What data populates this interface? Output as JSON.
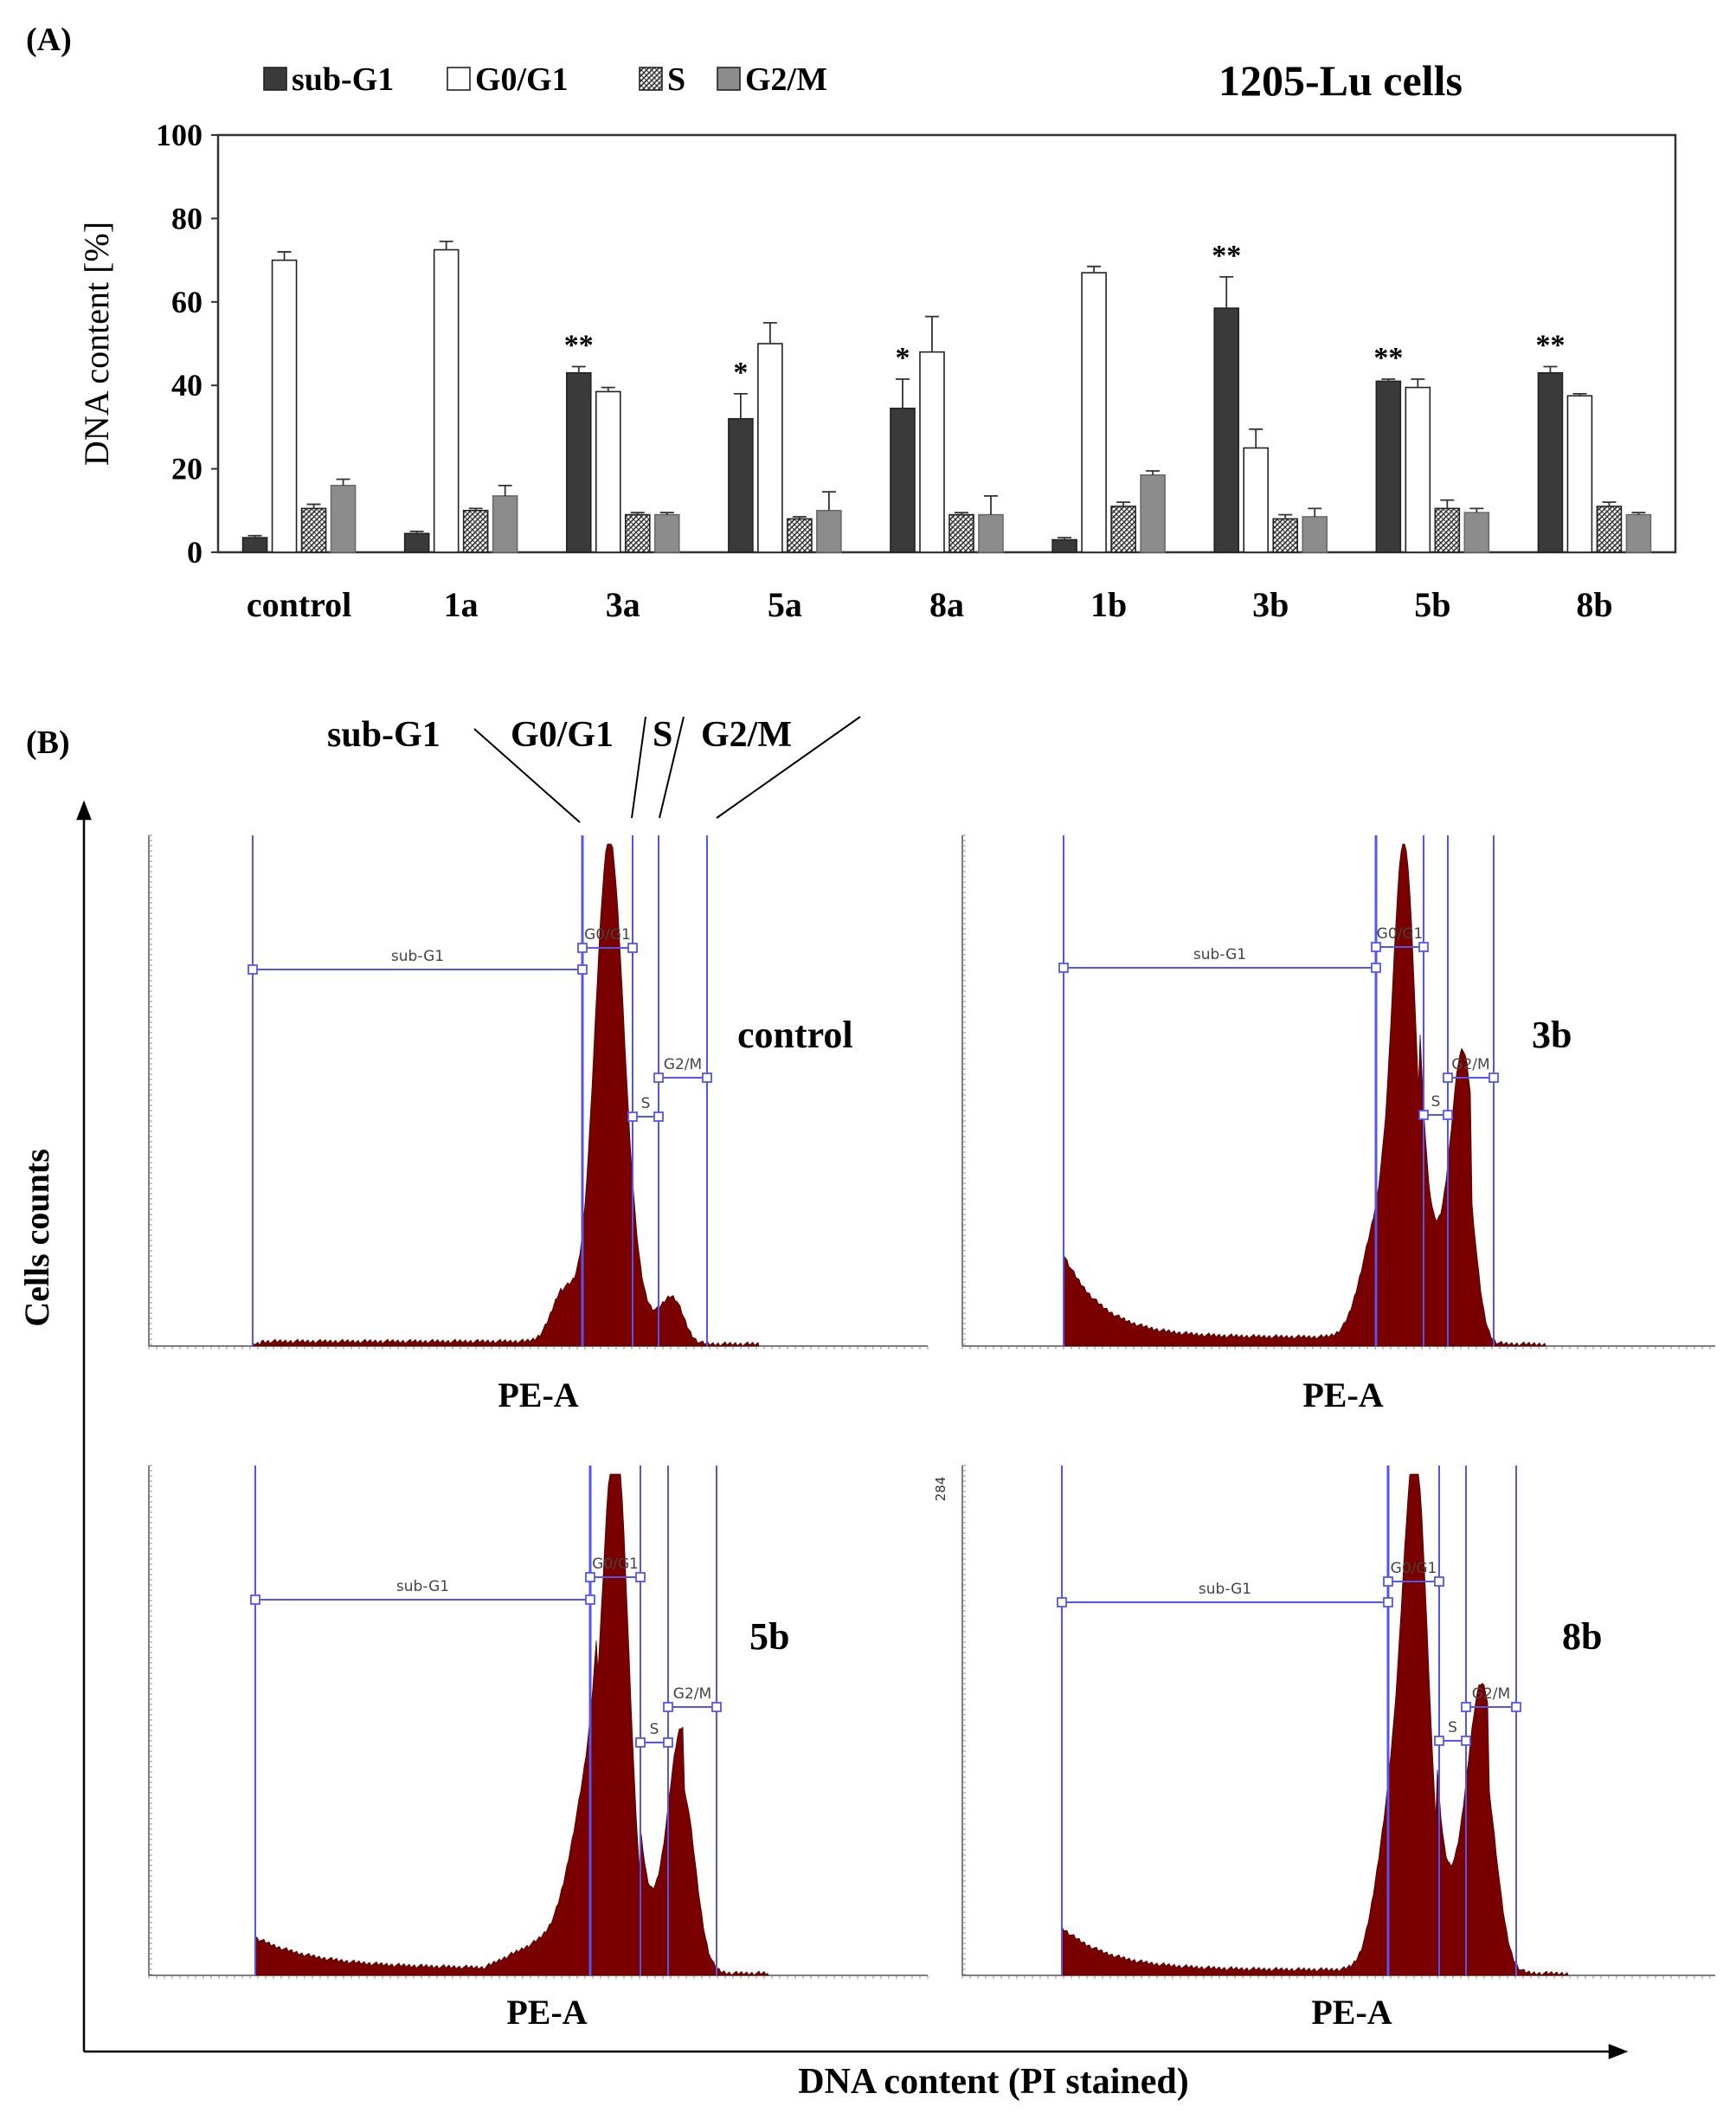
{
  "panels": {
    "a_label": "(A)",
    "b_label": "(B)"
  },
  "colors": {
    "sub_g1": "#3a3a3a",
    "g0g1": "#ffffff",
    "s": "#8a8a8a",
    "g2m": "#8c8c8c",
    "histogram_fill": "#7a0000",
    "gate": "#5555ee"
  },
  "chart_data": [
    {
      "type": "bar",
      "title": "1205-Lu cells",
      "xlabel": "",
      "ylabel": "DNA content  [%]",
      "ylim": [
        0,
        100
      ],
      "yticks": [
        "0",
        "20",
        "40",
        "60",
        "80",
        "100"
      ],
      "categories": [
        "control",
        "1a",
        "3a",
        "5a",
        "8a",
        "1b",
        "3b",
        "5b",
        "8b"
      ],
      "legend_position": "top-left",
      "series": [
        {
          "name": "sub-G1",
          "values": [
            3.5,
            4.5,
            43,
            32,
            34.5,
            3,
            58.5,
            41,
            43
          ],
          "errors": [
            0.5,
            0.5,
            1.5,
            6,
            7,
            0.5,
            7.5,
            0.5,
            1.5
          ]
        },
        {
          "name": "G0/G1",
          "values": [
            70,
            72.5,
            38.5,
            50,
            48,
            67,
            25,
            39.5,
            37.5
          ],
          "errors": [
            2,
            2,
            1,
            5,
            8.5,
            1.5,
            4.5,
            2,
            0.5
          ]
        },
        {
          "name": "S",
          "values": [
            10.5,
            10,
            9,
            8,
            9,
            11,
            8,
            10.5,
            11
          ],
          "errors": [
            1,
            0.5,
            0.5,
            0.5,
            0.5,
            1,
            1,
            2,
            1
          ]
        },
        {
          "name": "G2/M",
          "values": [
            16,
            13.5,
            9,
            10,
            9,
            18.5,
            8.5,
            9.5,
            9
          ],
          "errors": [
            1.5,
            2.5,
            0.5,
            4.5,
            4.5,
            1,
            2,
            1,
            0.5
          ]
        }
      ],
      "significance": [
        "",
        "",
        "**",
        "*",
        "*",
        "",
        "**",
        "**",
        "**"
      ]
    },
    {
      "type": "area",
      "description": "DNA content histograms (flow cytometry, PI stained)",
      "header_labels": [
        "sub-G1",
        "G0/G1",
        "S",
        "G2/M"
      ],
      "xlabel_common": "DNA content (PI stained)",
      "ylabel_common": "Cells counts",
      "axis_label": "PE-A",
      "gate_labels": [
        "sub-G1",
        "G0/G1",
        "S",
        "G2/M"
      ],
      "panels": [
        {
          "name": "control",
          "ymax_label": ""
        },
        {
          "name": "3b",
          "ymax_label": ""
        },
        {
          "name": "5b",
          "ymax_label": ""
        },
        {
          "name": "8b",
          "ymax_label": "284"
        }
      ]
    }
  ]
}
